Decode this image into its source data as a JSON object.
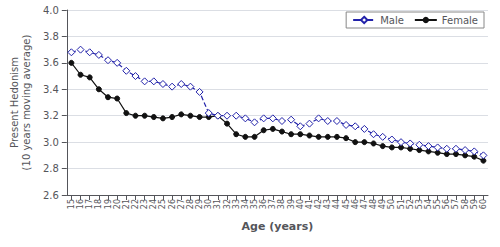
{
  "chart_data": {
    "type": "line",
    "xlabel": "Age (years)",
    "ylabel": "Present Hedonism\n(10 years moving average)",
    "x": [
      15,
      16,
      17,
      18,
      19,
      20,
      21,
      22,
      23,
      24,
      25,
      26,
      27,
      28,
      29,
      30,
      31,
      32,
      33,
      34,
      35,
      36,
      37,
      38,
      39,
      40,
      41,
      42,
      43,
      44,
      45,
      46,
      47,
      48,
      49,
      50,
      51,
      52,
      53,
      54,
      55,
      56,
      57,
      58,
      59,
      60
    ],
    "series": [
      {
        "name": "Male",
        "color": "#2222aa",
        "marker": "diamond",
        "line_style": "dashed",
        "values": [
          3.68,
          3.7,
          3.68,
          3.66,
          3.62,
          3.6,
          3.54,
          3.5,
          3.46,
          3.46,
          3.44,
          3.42,
          3.44,
          3.42,
          3.38,
          3.22,
          3.2,
          3.2,
          3.2,
          3.18,
          3.15,
          3.18,
          3.18,
          3.16,
          3.17,
          3.12,
          3.14,
          3.18,
          3.16,
          3.16,
          3.13,
          3.12,
          3.1,
          3.06,
          3.04,
          3.02,
          3.0,
          2.99,
          2.98,
          2.97,
          2.96,
          2.95,
          2.95,
          2.94,
          2.93,
          2.9
        ]
      },
      {
        "name": "Female",
        "color": "#111111",
        "marker": "circle",
        "line_style": "solid",
        "values": [
          3.6,
          3.51,
          3.49,
          3.4,
          3.34,
          3.33,
          3.22,
          3.2,
          3.2,
          3.19,
          3.18,
          3.19,
          3.21,
          3.2,
          3.19,
          3.19,
          3.2,
          3.14,
          3.06,
          3.04,
          3.04,
          3.09,
          3.1,
          3.08,
          3.06,
          3.06,
          3.05,
          3.04,
          3.04,
          3.04,
          3.03,
          3.0,
          3.0,
          2.99,
          2.97,
          2.96,
          2.96,
          2.95,
          2.94,
          2.93,
          2.92,
          2.91,
          2.91,
          2.9,
          2.89,
          2.86
        ]
      }
    ],
    "xlim": [
      14.5,
      60.5
    ],
    "xticks": [
      15,
      16,
      17,
      18,
      19,
      20,
      21,
      22,
      23,
      24,
      25,
      26,
      27,
      28,
      29,
      30,
      31,
      32,
      33,
      34,
      35,
      36,
      37,
      38,
      39,
      40,
      41,
      42,
      43,
      44,
      45,
      46,
      47,
      48,
      49,
      50,
      51,
      52,
      53,
      54,
      55,
      56,
      57,
      58,
      59,
      60
    ],
    "ylim": [
      2.6,
      4.0
    ],
    "yticks": [
      2.6,
      2.8,
      {
        "value": 3.0,
        "label": "3.0"
      },
      3.2,
      3.4,
      3.6,
      3.8,
      {
        "value": 4.0,
        "label": "4.0"
      }
    ],
    "grid": "y",
    "legend": "upper right"
  }
}
